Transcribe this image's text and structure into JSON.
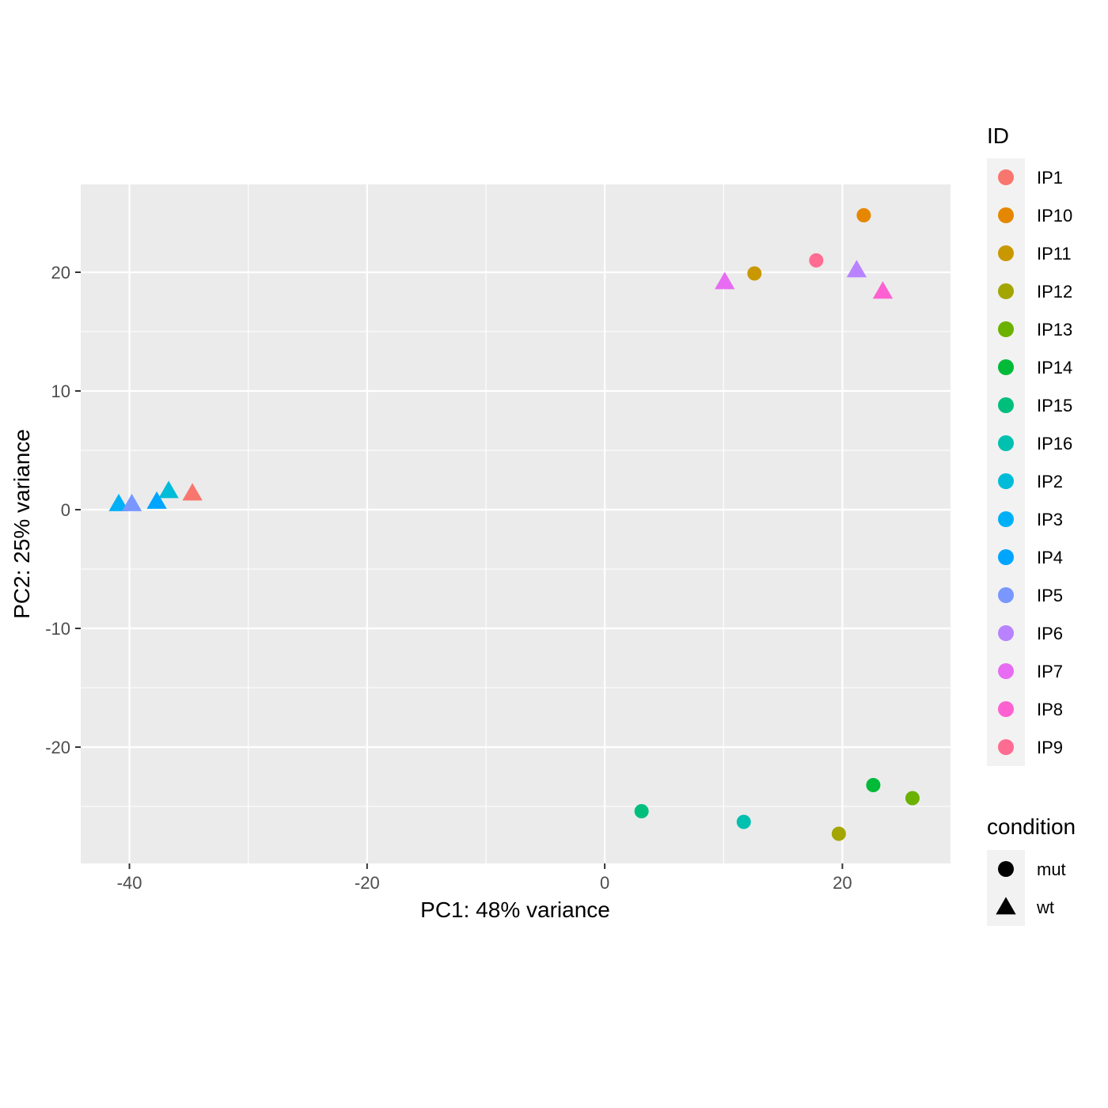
{
  "chart_data": {
    "type": "scatter",
    "xlabel": "PC1: 48% variance",
    "ylabel": "PC2: 25% variance",
    "xlim": [
      -44.1,
      29.1
    ],
    "ylim": [
      -29.8,
      27.4
    ],
    "x_ticks": [
      -40,
      -20,
      0,
      20
    ],
    "y_ticks": [
      -20,
      -10,
      0,
      10,
      20
    ],
    "x_tick_labels": [
      "-40",
      "-20",
      "0",
      "20"
    ],
    "y_tick_labels": [
      "-20",
      "-10",
      "0",
      "10",
      "20"
    ],
    "grid": true,
    "background": "#ebebeb",
    "legends": [
      {
        "title": "ID",
        "placement": "right",
        "entries": [
          {
            "label": "IP1",
            "color": "#F8766D"
          },
          {
            "label": "IP10",
            "color": "#E58700"
          },
          {
            "label": "IP11",
            "color": "#C99800"
          },
          {
            "label": "IP12",
            "color": "#A3A500"
          },
          {
            "label": "IP13",
            "color": "#6BB100"
          },
          {
            "label": "IP14",
            "color": "#00BA38"
          },
          {
            "label": "IP15",
            "color": "#00BF7D"
          },
          {
            "label": "IP16",
            "color": "#00C0AF"
          },
          {
            "label": "IP2",
            "color": "#00BCD8"
          },
          {
            "label": "IP3",
            "color": "#00B0F6"
          },
          {
            "label": "IP4",
            "color": "#00A5FF"
          },
          {
            "label": "IP5",
            "color": "#7997FF"
          },
          {
            "label": "IP6",
            "color": "#B983FF"
          },
          {
            "label": "IP7",
            "color": "#E76BF3"
          },
          {
            "label": "IP8",
            "color": "#FD61D1"
          },
          {
            "label": "IP9",
            "color": "#FF6C91"
          }
        ]
      },
      {
        "title": "condition",
        "placement": "right",
        "entries": [
          {
            "label": "mut",
            "shape": "circle"
          },
          {
            "label": "wt",
            "shape": "triangle"
          }
        ]
      }
    ],
    "points": [
      {
        "id": "IP1",
        "condition": "wt",
        "x": -34.7,
        "y": 1.4
      },
      {
        "id": "IP2",
        "condition": "wt",
        "x": -36.7,
        "y": 1.6
      },
      {
        "id": "IP3",
        "condition": "wt",
        "x": -40.9,
        "y": 0.5
      },
      {
        "id": "IP4",
        "condition": "wt",
        "x": -37.7,
        "y": 0.7
      },
      {
        "id": "IP5",
        "condition": "wt",
        "x": -39.8,
        "y": 0.5
      },
      {
        "id": "IP6",
        "condition": "wt",
        "x": 21.2,
        "y": 20.2
      },
      {
        "id": "IP7",
        "condition": "wt",
        "x": 10.1,
        "y": 19.2
      },
      {
        "id": "IP8",
        "condition": "wt",
        "x": 23.4,
        "y": 18.4
      },
      {
        "id": "IP9",
        "condition": "mut",
        "x": 17.8,
        "y": 21.0
      },
      {
        "id": "IP10",
        "condition": "mut",
        "x": 21.8,
        "y": 24.8
      },
      {
        "id": "IP11",
        "condition": "mut",
        "x": 12.6,
        "y": 19.9
      },
      {
        "id": "IP12",
        "condition": "mut",
        "x": 19.7,
        "y": -27.3
      },
      {
        "id": "IP13",
        "condition": "mut",
        "x": 25.9,
        "y": -24.3
      },
      {
        "id": "IP14",
        "condition": "mut",
        "x": 22.6,
        "y": -23.2
      },
      {
        "id": "IP15",
        "condition": "mut",
        "x": 3.1,
        "y": -25.4
      },
      {
        "id": "IP16",
        "condition": "mut",
        "x": 11.7,
        "y": -26.3
      }
    ]
  }
}
